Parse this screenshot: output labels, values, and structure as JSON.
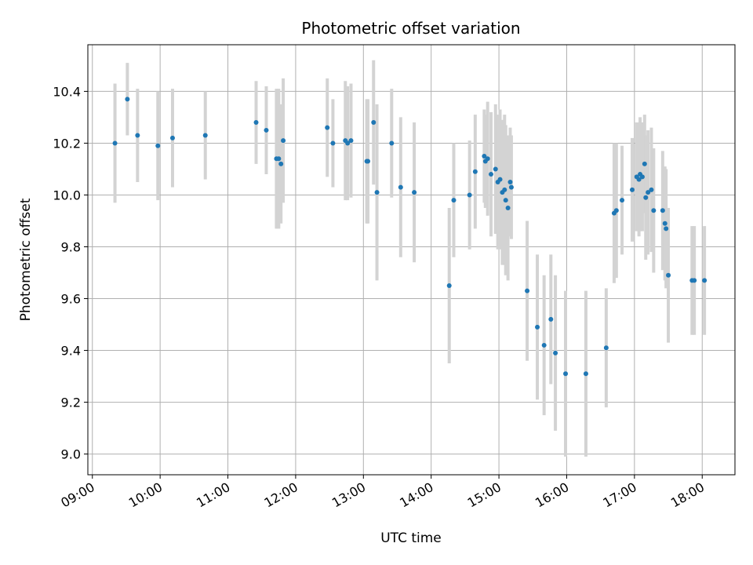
{
  "chart_data": {
    "type": "scatter",
    "title": "Photometric offset variation",
    "xlabel": "UTC time",
    "ylabel": "Photometric offset",
    "grid": true,
    "x_tick_labels": [
      "09:00",
      "10:00",
      "11:00",
      "12:00",
      "13:00",
      "14:00",
      "15:00",
      "16:00",
      "17:00",
      "18:00"
    ],
    "y_ticks": [
      9.0,
      9.2,
      9.4,
      9.6,
      9.8,
      10.0,
      10.2,
      10.4
    ],
    "y_tick_labels": [
      "9.0",
      "9.2",
      "9.4",
      "9.6",
      "9.8",
      "10.0",
      "10.2",
      "10.4"
    ],
    "xlim": [
      "08:56",
      "18:29"
    ],
    "ylim": [
      8.92,
      10.58
    ],
    "colors": {
      "point": "#1f77b4",
      "errorbar": "#d3d3d3",
      "grid": "#b0b0b0"
    },
    "series": [
      {
        "x": [
          "09:20",
          "09:31",
          "09:40",
          "09:58",
          "10:11",
          "10:40",
          "11:25",
          "11:34",
          "11:43",
          "11:45",
          "11:47",
          "11:49",
          "12:28",
          "12:33",
          "12:44",
          "12:46",
          "12:49",
          "13:03",
          "13:04",
          "13:09",
          "13:12",
          "13:25",
          "13:33",
          "13:45",
          "14:16",
          "14:20",
          "14:34",
          "14:39",
          "14:47",
          "14:48",
          "14:50",
          "14:53",
          "14:57",
          "14:59",
          "15:01",
          "15:03",
          "15:05",
          "15:06",
          "15:08",
          "15:10",
          "15:11",
          "15:25",
          "15:34",
          "15:40",
          "15:46",
          "15:50",
          "15:59",
          "16:17",
          "16:35",
          "16:42",
          "16:44",
          "16:49",
          "16:58",
          "17:02",
          "17:04",
          "17:05",
          "17:07",
          "17:09",
          "17:10",
          "17:12",
          "17:15",
          "17:17",
          "17:25",
          "17:27",
          "17:28",
          "17:30",
          "17:51",
          "17:53",
          "18:02"
        ],
        "y": [
          10.2,
          10.37,
          10.23,
          10.19,
          10.22,
          10.23,
          10.28,
          10.25,
          10.14,
          10.14,
          10.12,
          10.21,
          10.26,
          10.2,
          10.21,
          10.2,
          10.21,
          10.13,
          10.13,
          10.28,
          10.01,
          10.2,
          10.03,
          10.01,
          9.65,
          9.98,
          10.0,
          10.09,
          10.15,
          10.13,
          10.14,
          10.08,
          10.1,
          10.05,
          10.06,
          10.01,
          10.02,
          9.98,
          9.95,
          10.05,
          10.03,
          9.63,
          9.49,
          9.42,
          9.52,
          9.39,
          9.31,
          9.31,
          9.41,
          9.93,
          9.94,
          9.98,
          10.02,
          10.07,
          10.06,
          10.08,
          10.07,
          10.12,
          9.99,
          10.01,
          10.02,
          9.94,
          9.94,
          9.89,
          9.87,
          9.69,
          9.67,
          9.67,
          9.67
        ],
        "err": [
          0.23,
          0.14,
          0.18,
          0.21,
          0.19,
          0.17,
          0.16,
          0.17,
          0.27,
          0.27,
          0.23,
          0.24,
          0.19,
          0.17,
          0.23,
          0.22,
          0.22,
          0.24,
          0.24,
          0.24,
          0.34,
          0.21,
          0.27,
          0.27,
          0.3,
          0.22,
          0.21,
          0.22,
          0.18,
          0.18,
          0.22,
          0.24,
          0.25,
          0.26,
          0.27,
          0.28,
          0.29,
          0.29,
          0.28,
          0.21,
          0.2,
          0.27,
          0.28,
          0.27,
          0.25,
          0.3,
          0.32,
          0.32,
          0.23,
          0.27,
          0.26,
          0.21,
          0.2,
          0.21,
          0.22,
          0.22,
          0.21,
          0.19,
          0.24,
          0.24,
          0.24,
          0.24,
          0.23,
          0.22,
          0.23,
          0.26,
          0.21,
          0.21,
          0.21
        ]
      }
    ]
  }
}
